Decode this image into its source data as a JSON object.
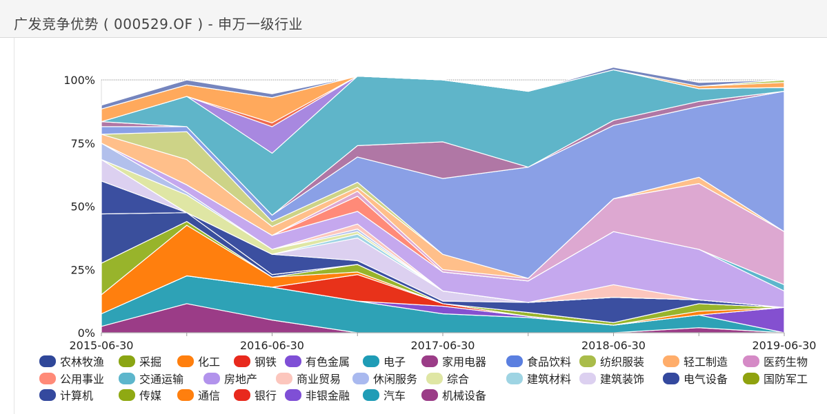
{
  "header": {
    "title": "广发竞争优势 ( 000529.OF ) - 申万一级行业"
  },
  "chart_data": {
    "type": "area",
    "stacked": true,
    "percent": true,
    "title": "广发竞争优势 ( 000529.OF ) - 申万一级行业",
    "x": [
      "2015-06-30",
      "2015-12-31",
      "2016-06-30",
      "2016-12-31",
      "2017-06-30",
      "2017-12-31",
      "2018-06-30",
      "2018-12-31",
      "2019-06-30"
    ],
    "x_tick_labels": [
      "2015-06-30",
      "2016-06-30",
      "2017-06-30",
      "2018-06-30",
      "2019-06-30"
    ],
    "x_tick_indices": [
      0,
      2,
      4,
      6,
      8
    ],
    "y_ticks": [
      "0%",
      "25%",
      "50%",
      "75%",
      "100%"
    ],
    "ylim": [
      0,
      100
    ],
    "grid": true,
    "legend_position": "bottom",
    "series": [
      {
        "name": "机械设备",
        "color": "#9b3c87",
        "values": [
          2.5,
          11.5,
          5,
          0,
          0,
          0,
          0,
          2,
          0
        ]
      },
      {
        "name": "汽车",
        "color": "#2ea2b6",
        "values": [
          5,
          11,
          13,
          12.5,
          7.5,
          6,
          3,
          5,
          0
        ]
      },
      {
        "name": "非银金融",
        "color": "#8450d0",
        "values": [
          0,
          0,
          0,
          0,
          3,
          0.5,
          0,
          0,
          10
        ]
      },
      {
        "name": "银行",
        "color": "#e8321a",
        "values": [
          0,
          0,
          0,
          10.5,
          1,
          0,
          0,
          0,
          0
        ]
      },
      {
        "name": "通信",
        "color": "#ff7f0e",
        "values": [
          7.5,
          20,
          4,
          1,
          0,
          0,
          0,
          1.5,
          0
        ]
      },
      {
        "name": "传媒",
        "color": "#98b42b",
        "values": [
          12.5,
          1.5,
          0,
          3,
          0,
          1.5,
          1,
          3,
          0
        ]
      },
      {
        "name": "计算机",
        "color": "#3a4f9c",
        "values": [
          19.5,
          3.5,
          1,
          0,
          0,
          0,
          0,
          0,
          0
        ]
      },
      {
        "name": "国防军工",
        "color": "#8fa20f",
        "values": [
          0,
          0,
          0,
          0,
          0,
          0,
          0,
          0,
          0
        ]
      },
      {
        "name": "电气设备",
        "color": "#3b4fa0",
        "values": [
          13,
          0,
          8,
          1.5,
          1,
          4,
          10,
          1.5,
          0
        ]
      },
      {
        "name": "建筑装饰",
        "color": "#dcd0f0",
        "values": [
          8.5,
          0,
          0,
          9,
          4,
          0,
          0,
          0,
          0
        ]
      },
      {
        "name": "建筑材料",
        "color": "#9ed4e3",
        "values": [
          0,
          0,
          0,
          1.5,
          0,
          0,
          0,
          0,
          0
        ]
      },
      {
        "name": "综合",
        "color": "#dfe6a4",
        "values": [
          0,
          7,
          2,
          1,
          0,
          0,
          0,
          0,
          0
        ]
      },
      {
        "name": "休闲服务",
        "color": "#b2c0ec",
        "values": [
          6.5,
          1,
          0,
          1,
          0,
          0,
          0,
          0,
          0
        ]
      },
      {
        "name": "商业贸易",
        "color": "#fcc6bd",
        "values": [
          0,
          0,
          0,
          2,
          0,
          0,
          5,
          0,
          0
        ]
      },
      {
        "name": "房地产",
        "color": "#c5a8ee",
        "values": [
          0,
          3,
          5.5,
          5,
          7.5,
          8.5,
          21,
          20,
          6.5
        ]
      },
      {
        "name": "交通运输",
        "color": "#5db6cc",
        "values": [
          0,
          0,
          0,
          0,
          0,
          0,
          0,
          0,
          2.5
        ]
      },
      {
        "name": "公用事业",
        "color": "#ff8a78",
        "values": [
          0,
          0,
          0,
          6,
          0,
          0,
          0,
          0,
          0
        ]
      },
      {
        "name": "医药生物",
        "color": "#dda8d1",
        "values": [
          0,
          0,
          0,
          2,
          1,
          1,
          13,
          26,
          21
        ]
      },
      {
        "name": "轻工制造",
        "color": "#ffbf8a",
        "values": [
          3.5,
          10,
          3.5,
          1.5,
          6,
          0,
          0,
          2.5,
          0
        ]
      },
      {
        "name": "纺织服装",
        "color": "#cdd387",
        "values": [
          0,
          11,
          2,
          2,
          0,
          0,
          0,
          0,
          0
        ]
      },
      {
        "name": "食品饮料",
        "color": "#8aa0e6",
        "values": [
          3,
          2,
          2.5,
          10,
          30,
          44,
          29,
          28,
          55.5
        ]
      },
      {
        "name": "家用电器",
        "color": "#b077a5",
        "values": [
          2,
          0,
          0,
          4.5,
          14.5,
          0,
          2,
          2,
          0
        ]
      },
      {
        "name": "电子",
        "color": "#5fb5c9",
        "values": [
          0,
          12,
          24.5,
          27.5,
          24.5,
          30,
          20,
          5,
          1.5
        ]
      },
      {
        "name": "有色金属",
        "color": "#a888e0",
        "values": [
          0,
          0,
          10.5,
          0,
          0,
          0,
          0,
          0,
          0
        ]
      },
      {
        "name": "钢铁",
        "color": "#ef6a4e",
        "values": [
          0,
          0,
          1.5,
          0,
          0,
          0,
          0,
          0,
          0
        ]
      },
      {
        "name": "化工",
        "color": "#ffa95c",
        "values": [
          5,
          4.5,
          10,
          0,
          0,
          0,
          0,
          1,
          2
        ]
      },
      {
        "name": "采掘",
        "color": "#b7c95a",
        "values": [
          0,
          0,
          0,
          0,
          0,
          0,
          0,
          0,
          1
        ]
      },
      {
        "name": "农林牧渔",
        "color": "#7585be",
        "values": [
          1.5,
          2,
          1.5,
          0,
          0,
          0,
          1,
          1.5,
          0
        ]
      }
    ]
  },
  "legend": {
    "items": [
      {
        "name": "农林牧渔",
        "color": "#2f4799"
      },
      {
        "name": "采掘",
        "color": "#8aa513"
      },
      {
        "name": "化工",
        "color": "#ff7f0e"
      },
      {
        "name": "钢铁",
        "color": "#e8291d"
      },
      {
        "name": "有色金属",
        "color": "#7f4fd6"
      },
      {
        "name": "电子",
        "color": "#1f9cb6"
      },
      {
        "name": "家用电器",
        "color": "#9b3c87"
      },
      {
        "name": "食品饮料",
        "color": "#5a7fe0"
      },
      {
        "name": "纺织服装",
        "color": "#a9bc4a"
      },
      {
        "name": "轻工制造",
        "color": "#ffad6a"
      },
      {
        "name": "医药生物",
        "color": "#d58ac6"
      },
      {
        "name": "公用事业",
        "color": "#ff8a78"
      },
      {
        "name": "交通运输",
        "color": "#5db6cc"
      },
      {
        "name": "房地产",
        "color": "#b293ec"
      },
      {
        "name": "商业贸易",
        "color": "#fcc6bd"
      },
      {
        "name": "休闲服务",
        "color": "#a9b9ef"
      },
      {
        "name": "综合",
        "color": "#dfe6a4"
      },
      {
        "name": "建筑材料",
        "color": "#9ed4e3"
      },
      {
        "name": "建筑装饰",
        "color": "#dcd0f0"
      },
      {
        "name": "电气设备",
        "color": "#34499e"
      },
      {
        "name": "国防军工",
        "color": "#8fa20f"
      },
      {
        "name": "计算机",
        "color": "#34499e"
      },
      {
        "name": "传媒",
        "color": "#8fa913"
      },
      {
        "name": "通信",
        "color": "#ff7f0e"
      },
      {
        "name": "银行",
        "color": "#e8291d"
      },
      {
        "name": "非银金融",
        "color": "#7f4fd6"
      },
      {
        "name": "汽车",
        "color": "#1f9cb6"
      },
      {
        "name": "机械设备",
        "color": "#9b3c87"
      }
    ]
  }
}
